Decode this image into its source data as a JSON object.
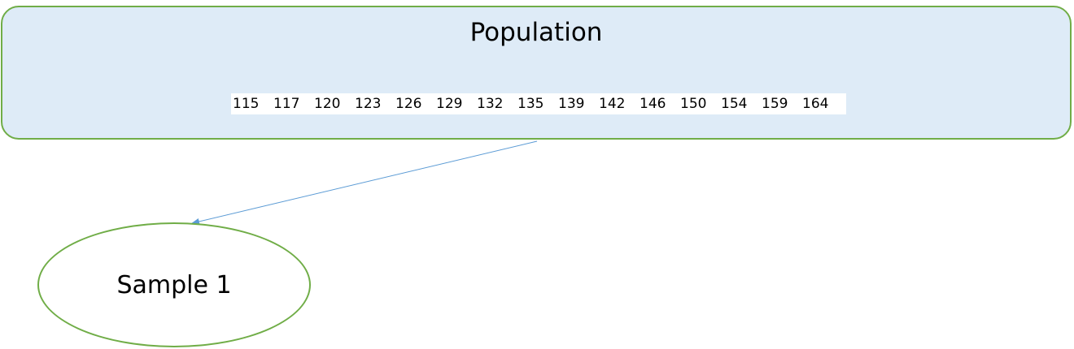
{
  "population": {
    "title": "Population",
    "values": [
      "115",
      "117",
      "120",
      "123",
      "126",
      "129",
      "132",
      "135",
      "139",
      "142",
      "146",
      "150",
      "154",
      "159",
      "164"
    ]
  },
  "sample": {
    "label": "Sample 1"
  },
  "colors": {
    "box_fill": "#deebf7",
    "shape_border": "#70ad47",
    "arrow": "#5b9bd5"
  }
}
